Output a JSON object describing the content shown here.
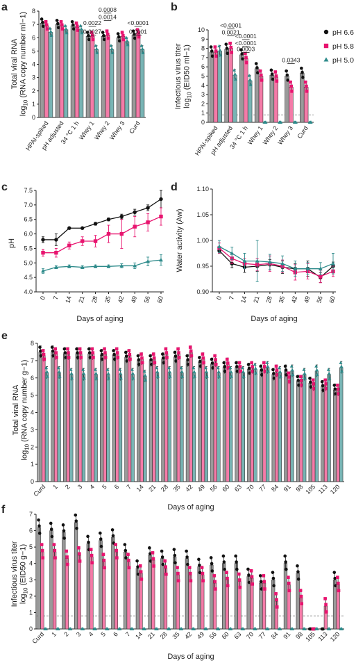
{
  "colors": {
    "pH 6.6": "#111111",
    "pH 5.8": "#e8146f",
    "pH 5.0": "#2e8b8b",
    "bar66": "#9a9a9a",
    "bar58": "#f47ba8",
    "bar50": "#78b4b4"
  },
  "chart_data": [
    {
      "panel": "a",
      "type": "bar",
      "ylabel_line1": "Total viral RNA",
      "ylabel_line2": "log10 (RNA copy number ml−1)",
      "ylim": [
        0,
        8
      ],
      "yticks": [
        0,
        1,
        2,
        3,
        4,
        5,
        6,
        7,
        8
      ],
      "categories": [
        "HPAI-spiked",
        "pH adjusted",
        "34 °C 1 h",
        "Whey 1",
        "Whey 2",
        "Whey 3",
        "Curd"
      ],
      "series": [
        {
          "name": "pH 6.6",
          "values": [
            7.1,
            7.0,
            6.9,
            6.1,
            6.1,
            6.0,
            6.2
          ]
        },
        {
          "name": "pH 5.8",
          "values": [
            6.9,
            6.9,
            6.8,
            6.1,
            6.2,
            6.1,
            6.3
          ]
        },
        {
          "name": "pH 5.0",
          "values": [
            6.4,
            6.6,
            6.6,
            5.1,
            5.1,
            5.7,
            5.1
          ]
        }
      ],
      "pvalues": [
        {
          "label": "0.0022",
          "group": 3,
          "level": 6.85
        },
        {
          "label": "0.0027",
          "group": 3,
          "level": 6.2
        },
        {
          "label": "0.0008",
          "group": 4,
          "level": 7.85
        },
        {
          "label": "0.0014",
          "group": 4,
          "level": 7.3
        },
        {
          "label": "<0.0001",
          "group": 6,
          "level": 6.85
        },
        {
          "label": "0.0001",
          "group": 6,
          "level": 6.2
        }
      ]
    },
    {
      "panel": "b",
      "type": "bar",
      "ylabel_line1": "Infectious virus titer",
      "ylabel_line2": "log10 (EID50 ml−1)",
      "ylim": [
        0,
        10
      ],
      "yticks": [
        0,
        1,
        2,
        3,
        4,
        5,
        6,
        7,
        8,
        9,
        10
      ],
      "limit_of_detection": 0.8,
      "categories": [
        "HPAI-spiked",
        "pH adjusted",
        "34 °C 1 h",
        "Whey 1",
        "Whey 2",
        "Whey 3",
        "Curd"
      ],
      "series": [
        {
          "name": "pH 6.6",
          "values": [
            7.6,
            7.9,
            7.3,
            5.8,
            5.1,
            5.0,
            5.3
          ]
        },
        {
          "name": "pH 5.8",
          "values": [
            7.6,
            8.0,
            6.9,
            5.0,
            4.9,
            3.8,
            3.8
          ]
        },
        {
          "name": "pH 5.0",
          "values": [
            7.7,
            5.1,
            4.5,
            0,
            0,
            0,
            0
          ]
        }
      ],
      "pvalues": [
        {
          "label": "<0.0001",
          "group": 1,
          "level": 10.1
        },
        {
          "label": "0.0021",
          "group": 1,
          "level": 9.35
        },
        {
          "label": "<0.0001",
          "group": 2,
          "level": 8.95
        },
        {
          "label": "<0.0001",
          "group": 2,
          "level": 8.2
        },
        {
          "label": "0.0003",
          "group": 2,
          "level": 7.55
        },
        {
          "label": "0.0343",
          "group": 5,
          "level": 6.35
        }
      ],
      "legend": [
        "pH 6.6",
        "pH 5.8",
        "pH 5.0"
      ]
    },
    {
      "panel": "c",
      "type": "line",
      "ylabel": "pH",
      "xlabel": "Days of aging",
      "x": [
        0,
        7,
        14,
        21,
        28,
        35,
        42,
        49,
        56,
        60
      ],
      "ylim": [
        4.0,
        7.5
      ],
      "yticks": [
        4.0,
        4.5,
        5.0,
        5.5,
        6.0,
        6.5,
        7.0,
        7.5
      ],
      "series": [
        {
          "name": "pH 6.6",
          "values": [
            5.8,
            5.8,
            6.2,
            6.2,
            6.35,
            6.5,
            6.6,
            6.75,
            6.9,
            7.2
          ],
          "err": [
            0.1,
            0.2,
            0.03,
            0.03,
            0.05,
            0.05,
            0.08,
            0.1,
            0.1,
            0.3
          ]
        },
        {
          "name": "pH 5.8",
          "values": [
            5.35,
            5.35,
            5.6,
            5.75,
            5.75,
            6.0,
            6.0,
            6.25,
            6.4,
            6.6
          ],
          "err": [
            0.12,
            0.15,
            0.12,
            0.15,
            0.2,
            0.3,
            0.5,
            0.35,
            0.3,
            0.3
          ]
        },
        {
          "name": "pH 5.0",
          "values": [
            4.72,
            4.85,
            4.88,
            4.85,
            4.88,
            4.88,
            4.9,
            4.9,
            5.05,
            5.1
          ],
          "err": [
            0.08,
            0.05,
            0.05,
            0.05,
            0.05,
            0.05,
            0.07,
            0.1,
            0.15,
            0.18
          ]
        }
      ]
    },
    {
      "panel": "d",
      "type": "line",
      "ylabel": "Water activity (Aw)",
      "xlabel": "Days of aging",
      "x": [
        0,
        7,
        14,
        21,
        28,
        35,
        42,
        49,
        56,
        60
      ],
      "ylim": [
        0.9,
        1.1
      ],
      "yticks": [
        0.9,
        0.95,
        1.0,
        1.05,
        1.1
      ],
      "series": [
        {
          "name": "pH 6.6",
          "values": [
            0.98,
            0.955,
            0.948,
            0.95,
            0.953,
            0.948,
            0.945,
            0.945,
            0.928,
            0.95
          ],
          "err": [
            0.005,
            0.008,
            0.01,
            0.01,
            0.01,
            0.012,
            0.01,
            0.015,
            0.01,
            0.008
          ]
        },
        {
          "name": "pH 5.8",
          "values": [
            0.985,
            0.965,
            0.955,
            0.953,
            0.955,
            0.95,
            0.938,
            0.94,
            0.93,
            0.94
          ],
          "err": [
            0.01,
            0.01,
            0.01,
            0.012,
            0.015,
            0.012,
            0.015,
            0.015,
            0.012,
            0.01
          ]
        },
        {
          "name": "pH 5.0",
          "values": [
            0.988,
            0.975,
            0.96,
            0.96,
            0.958,
            0.955,
            0.945,
            0.945,
            0.945,
            0.955
          ],
          "err": [
            0.012,
            0.012,
            0.015,
            0.04,
            0.015,
            0.015,
            0.015,
            0.012,
            0.012,
            0.02
          ]
        }
      ]
    },
    {
      "panel": "e",
      "type": "bar",
      "ylabel_line1": "Total viral RNA",
      "ylabel_line2": "log10 (RNA copy number g−1)",
      "xlabel": "Days of aging",
      "ylim": [
        0,
        8
      ],
      "yticks": [
        0,
        1,
        2,
        3,
        4,
        5,
        6,
        7,
        8
      ],
      "categories": [
        "Curd",
        "1",
        "2",
        "3",
        "4",
        "5",
        "6",
        "7",
        "14",
        "21",
        "28",
        "35",
        "42",
        "49",
        "56",
        "60",
        "63",
        "70",
        "77",
        "84",
        "91",
        "98",
        "105",
        "113",
        "120"
      ],
      "series": [
        {
          "name": "pH 6.6",
          "values": [
            7.5,
            7.5,
            7.4,
            7.4,
            7.4,
            7.3,
            7.3,
            7.2,
            7.0,
            7.0,
            7.1,
            7.2,
            7.0,
            6.9,
            6.8,
            6.6,
            6.6,
            6.5,
            6.4,
            6.2,
            6.4,
            5.8,
            5.7,
            5.5,
            5.3
          ]
        },
        {
          "name": "pH 5.8",
          "values": [
            7.3,
            7.4,
            7.4,
            7.4,
            7.4,
            7.4,
            7.4,
            7.3,
            7.1,
            7.1,
            7.4,
            7.4,
            7.5,
            7.1,
            7.0,
            6.8,
            6.6,
            6.6,
            6.6,
            6.4,
            6.0,
            5.8,
            5.6,
            5.6,
            5.3
          ]
        },
        {
          "name": "pH 5.0",
          "values": [
            6.3,
            6.3,
            6.2,
            6.2,
            6.2,
            6.2,
            6.2,
            6.2,
            6.1,
            6.3,
            6.3,
            6.3,
            6.3,
            6.3,
            6.3,
            6.3,
            6.3,
            6.5,
            6.6,
            6.3,
            6.4,
            6.2,
            6.4,
            6.2,
            6.6
          ]
        }
      ]
    },
    {
      "panel": "f",
      "type": "bar",
      "ylabel_line1": "Infectious virus titer",
      "ylabel_line2": "log10 (EID50 g−1)",
      "xlabel": "Days of aging",
      "ylim": [
        0,
        7
      ],
      "yticks": [
        0,
        1,
        2,
        3,
        4,
        5,
        6,
        7
      ],
      "limit_of_detection": 0.8,
      "categories": [
        "Curd",
        "1",
        "2",
        "3",
        "4",
        "5",
        "6",
        "7",
        "14",
        "21",
        "28",
        "35",
        "42",
        "49",
        "56",
        "60",
        "63",
        "70",
        "77",
        "84",
        "91",
        "98",
        "105",
        "113",
        "120"
      ],
      "series": [
        {
          "name": "pH 6.6",
          "values": [
            6.2,
            6.0,
            5.9,
            6.5,
            5.2,
            5.4,
            5.6,
            4.7,
            3.7,
            4.5,
            4.3,
            4.4,
            4.3,
            3.8,
            3.9,
            4.0,
            4.0,
            3.2,
            2.8,
            3.0,
            4.0,
            3.4,
            0,
            0,
            3.0
          ]
        },
        {
          "name": "pH 5.8",
          "values": [
            4.7,
            4.7,
            4.3,
            4.5,
            4.4,
            4.1,
            4.7,
            4.1,
            3.4,
            4.2,
            3.7,
            3.3,
            3.3,
            3.3,
            2.8,
            3.0,
            2.9,
            3.1,
            2.8,
            1.7,
            2.7,
            1.9,
            0,
            1.4,
            2.7
          ]
        },
        {
          "name": "pH 5.0",
          "values": [
            0,
            0,
            0,
            0,
            0,
            0,
            0,
            0,
            0,
            0,
            0,
            0,
            0,
            0,
            0,
            0,
            0,
            0,
            0,
            0,
            0,
            0,
            0,
            0,
            0
          ]
        }
      ]
    }
  ]
}
